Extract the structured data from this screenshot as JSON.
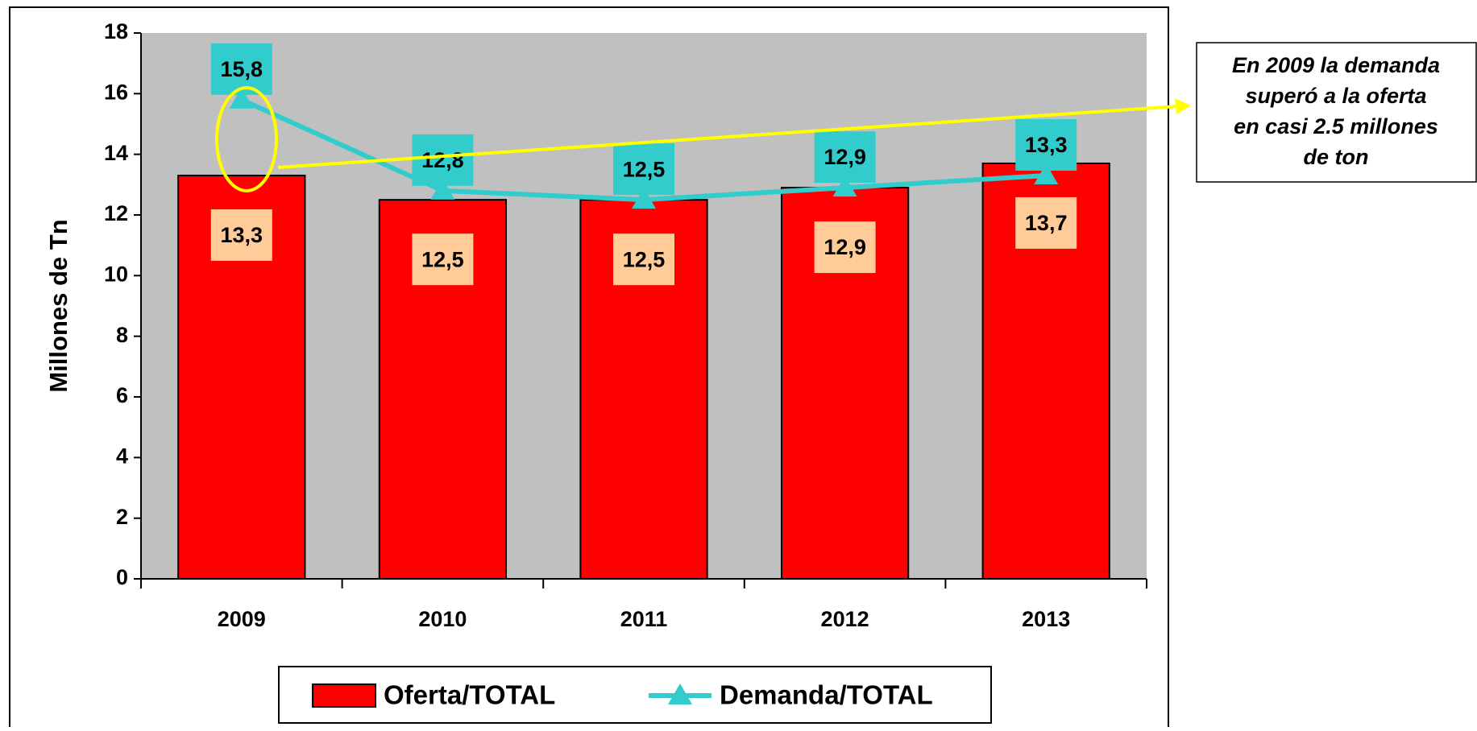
{
  "chart_data": {
    "type": "bar_line",
    "y_label": "Millones de Tn",
    "categories": [
      "2009",
      "2010",
      "2011",
      "2012",
      "2013"
    ],
    "series": [
      {
        "name": "Oferta/TOTAL",
        "type": "bar",
        "color": "#ff0000",
        "label_color": "#ffcc99",
        "values": [
          13.3,
          12.5,
          12.5,
          12.9,
          13.7
        ],
        "value_labels": [
          "13,3",
          "12,5",
          "12,5",
          "12,9",
          "13,7"
        ]
      },
      {
        "name": "Demanda/TOTAL",
        "type": "line",
        "color": "#33cccc",
        "label_color": "#33cccc",
        "values": [
          15.8,
          12.8,
          12.5,
          12.9,
          13.3
        ],
        "value_labels": [
          "15,8",
          "12,8",
          "12,5",
          "12,9",
          "13,3"
        ]
      }
    ],
    "ylim": [
      0,
      18
    ],
    "yticks": [
      0,
      2,
      4,
      6,
      8,
      10,
      12,
      14,
      16,
      18
    ],
    "grid": false,
    "plot_background": "#c0c0c0",
    "legend": "bottom",
    "annotation": [
      "En 2009 la demanda",
      "superó a la oferta",
      "en casi 2.5 millones",
      "de ton"
    ]
  }
}
